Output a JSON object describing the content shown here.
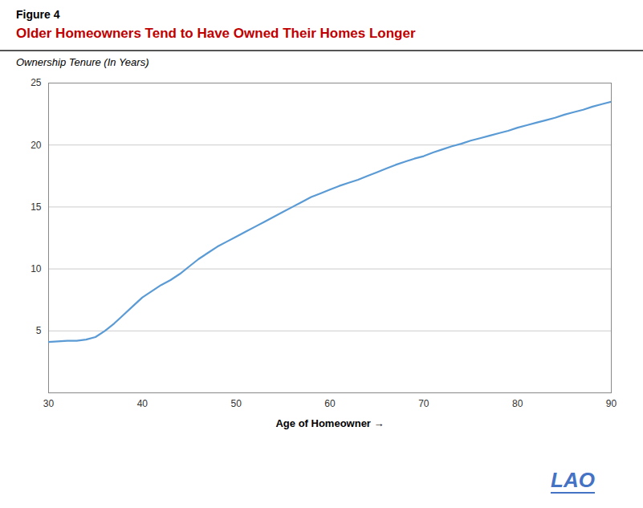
{
  "chart_data": {
    "type": "line",
    "title": "Older Homeowners Tend to Have Owned Their Homes Longer",
    "xlabel": "Age of Homeowner",
    "ylabel": "Ownership Tenure (In Years)",
    "annotations": [
      "Figure 4",
      "LAO"
    ],
    "color": "#5B9BD5",
    "x": [
      30,
      31,
      32,
      33,
      34,
      35,
      36,
      37,
      38,
      39,
      40,
      41,
      42,
      43,
      44,
      45,
      46,
      47,
      48,
      49,
      50,
      51,
      52,
      53,
      54,
      55,
      56,
      57,
      58,
      59,
      60,
      61,
      62,
      63,
      64,
      65,
      66,
      67,
      68,
      69,
      70,
      71,
      72,
      73,
      74,
      75,
      76,
      77,
      78,
      79,
      80,
      81,
      82,
      83,
      84,
      85,
      86,
      87,
      88,
      89,
      90
    ],
    "values": [
      4.1,
      4.15,
      4.2,
      4.2,
      4.3,
      4.5,
      5.0,
      5.6,
      6.3,
      7.0,
      7.7,
      8.2,
      8.7,
      9.1,
      9.6,
      10.2,
      10.8,
      11.3,
      11.8,
      12.2,
      12.6,
      13.0,
      13.4,
      13.8,
      14.2,
      14.6,
      15.0,
      15.4,
      15.8,
      16.1,
      16.4,
      16.7,
      16.95,
      17.2,
      17.5,
      17.8,
      18.1,
      18.4,
      18.65,
      18.9,
      19.1,
      19.4,
      19.65,
      19.9,
      20.1,
      20.35,
      20.55,
      20.75,
      20.95,
      21.15,
      21.4,
      21.6,
      21.8,
      22.0,
      22.2,
      22.45,
      22.65,
      22.85,
      23.1,
      23.3,
      23.5
    ],
    "xlim": [
      30,
      90
    ],
    "ylim": [
      0,
      25
    ],
    "xticks": [
      30,
      40,
      50,
      60,
      70,
      80,
      90
    ],
    "yticks": [
      5,
      10,
      15,
      20,
      25
    ],
    "grid": true
  }
}
